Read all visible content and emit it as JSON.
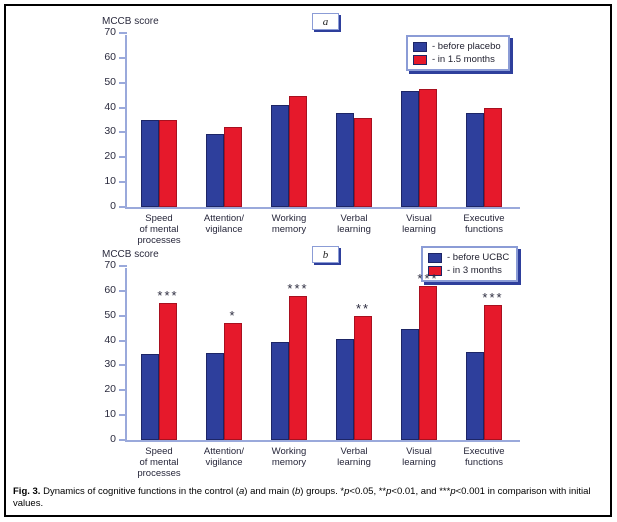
{
  "figure": {
    "caption": {
      "fig": "Fig. 3.",
      "t1": " Dynamics of cognitive functions in the control (",
      "a": "a",
      "t2": ") and main (",
      "b": "b",
      "t3": ") groups. *",
      "p1": "p",
      "t4": "<0.05, **",
      "p2": "p",
      "t5": "<0.01, and ***",
      "p3": "p",
      "t6": "<0.001 in comparison with initial values."
    }
  },
  "colors": {
    "bar_blue": "#2E3F9C",
    "bar_red": "#E6192B",
    "axis": "#9AA9DB",
    "text_navy": "#2B2B3E",
    "legend_border": "#8B9CD6",
    "legend_shadow": "#2E3F9C",
    "frame": "#000000"
  },
  "chart_data": [
    {
      "type": "bar",
      "panel_label": "a",
      "ylabel": "MCCB score",
      "ylim": [
        0,
        70
      ],
      "ytick_step": 10,
      "grid": false,
      "legend_position": "top-right",
      "categories": [
        [
          "Speed",
          "of mental",
          "processes"
        ],
        [
          "Attention/",
          "vigilance"
        ],
        [
          "Working",
          "memory"
        ],
        [
          "Verbal",
          "learning"
        ],
        [
          "Visual",
          "learning"
        ],
        [
          "Executive",
          "functions"
        ]
      ],
      "series": [
        {
          "name": "- before placebo",
          "color": "#2E3F9C",
          "values": [
            35,
            29.5,
            41,
            38,
            46.5,
            38
          ]
        },
        {
          "name": "- in 1.5 months",
          "color": "#E6192B",
          "values": [
            35,
            32,
            44.5,
            36,
            47.5,
            40
          ]
        }
      ],
      "significance": [
        "",
        "",
        "",
        "",
        "",
        ""
      ]
    },
    {
      "type": "bar",
      "panel_label": "b",
      "ylabel": "MCCB score",
      "ylim": [
        0,
        70
      ],
      "ytick_step": 10,
      "grid": false,
      "legend_position": "top-right",
      "categories": [
        [
          "Speed",
          "of mental",
          "processes"
        ],
        [
          "Attention/",
          "vigilance"
        ],
        [
          "Working",
          "memory"
        ],
        [
          "Verbal",
          "learning"
        ],
        [
          "Visual",
          "learning"
        ],
        [
          "Executive",
          "functions"
        ]
      ],
      "series": [
        {
          "name": "- before UCBC",
          "color": "#2E3F9C",
          "values": [
            34.5,
            35,
            39.5,
            40.5,
            44.5,
            35.5
          ]
        },
        {
          "name": "- in 3 months",
          "color": "#E6192B",
          "values": [
            55,
            47,
            58,
            50,
            62,
            54.5
          ]
        }
      ],
      "significance": [
        "***",
        "*",
        "***",
        "**",
        "***",
        "***"
      ]
    }
  ]
}
